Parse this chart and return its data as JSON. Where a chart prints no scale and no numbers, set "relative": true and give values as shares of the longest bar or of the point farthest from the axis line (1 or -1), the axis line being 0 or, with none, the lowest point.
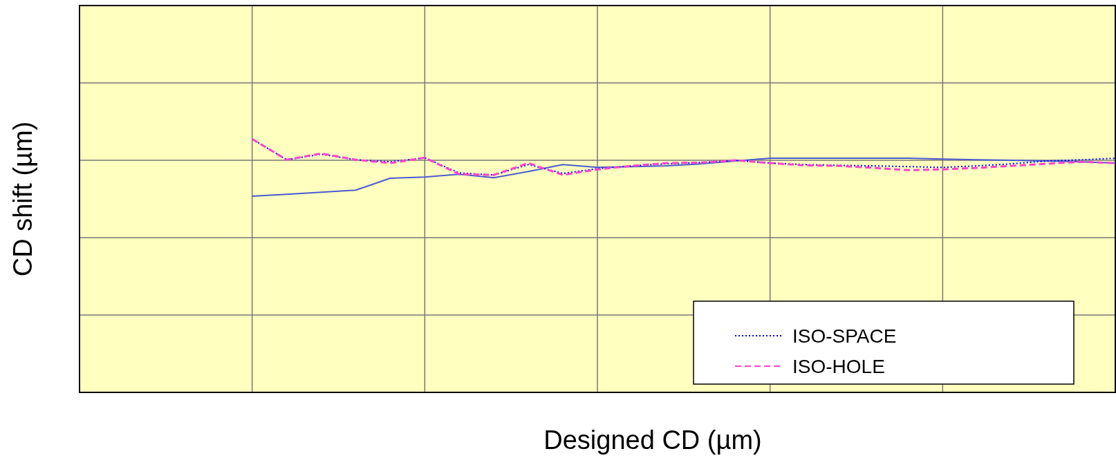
{
  "chart_data": {
    "type": "line",
    "relative": true,
    "xlabel": "Designed CD (µm)",
    "ylabel": "CD shift (µm)",
    "categories": [
      null,
      null,
      null,
      null,
      null,
      null,
      null,
      null,
      null,
      null,
      null,
      null,
      null,
      null,
      null,
      null,
      null,
      null,
      null,
      null,
      null,
      null,
      null,
      null,
      null,
      null,
      null,
      null,
      null,
      null,
      null
    ],
    "grid": true,
    "legend": "bottom right",
    "series": [
      {
        "color": "#4a5ad0",
        "line_style": "solid",
        "values": [
          null,
          null,
          null,
          null,
          null,
          0.774,
          0.782,
          0.79,
          0.798,
          0.845,
          0.85,
          0.861,
          0.847,
          0.872,
          0.899,
          0.888,
          0.891,
          0.894,
          0.902,
          0.913,
          0.924,
          0.924,
          0.924,
          0.924,
          0.924,
          0.921,
          0.918,
          0.916,
          0.913,
          0.91,
          0.905
        ]
      },
      {
        "name": "ISO-SPACE",
        "color": "#0000ff",
        "line_style": "dotted",
        "values": [
          null,
          null,
          null,
          null,
          null,
          1.0,
          0.918,
          0.94,
          0.918,
          0.91,
          0.926,
          0.866,
          0.858,
          0.899,
          0.864,
          0.883,
          0.894,
          0.902,
          0.907,
          0.916,
          0.905,
          0.899,
          0.896,
          0.894,
          0.891,
          0.888,
          0.894,
          0.902,
          0.913,
          0.918,
          0.924
        ]
      },
      {
        "name": "ISO-HOLE",
        "color": "#ff44cc",
        "line_style": "dashed",
        "values": [
          null,
          null,
          null,
          null,
          null,
          1.0,
          0.918,
          0.943,
          0.918,
          0.905,
          0.926,
          0.861,
          0.858,
          0.905,
          0.858,
          0.88,
          0.894,
          0.905,
          0.907,
          0.916,
          0.905,
          0.896,
          0.894,
          0.886,
          0.877,
          0.88,
          0.886,
          0.894,
          0.902,
          0.91,
          0.905
        ]
      }
    ]
  }
}
